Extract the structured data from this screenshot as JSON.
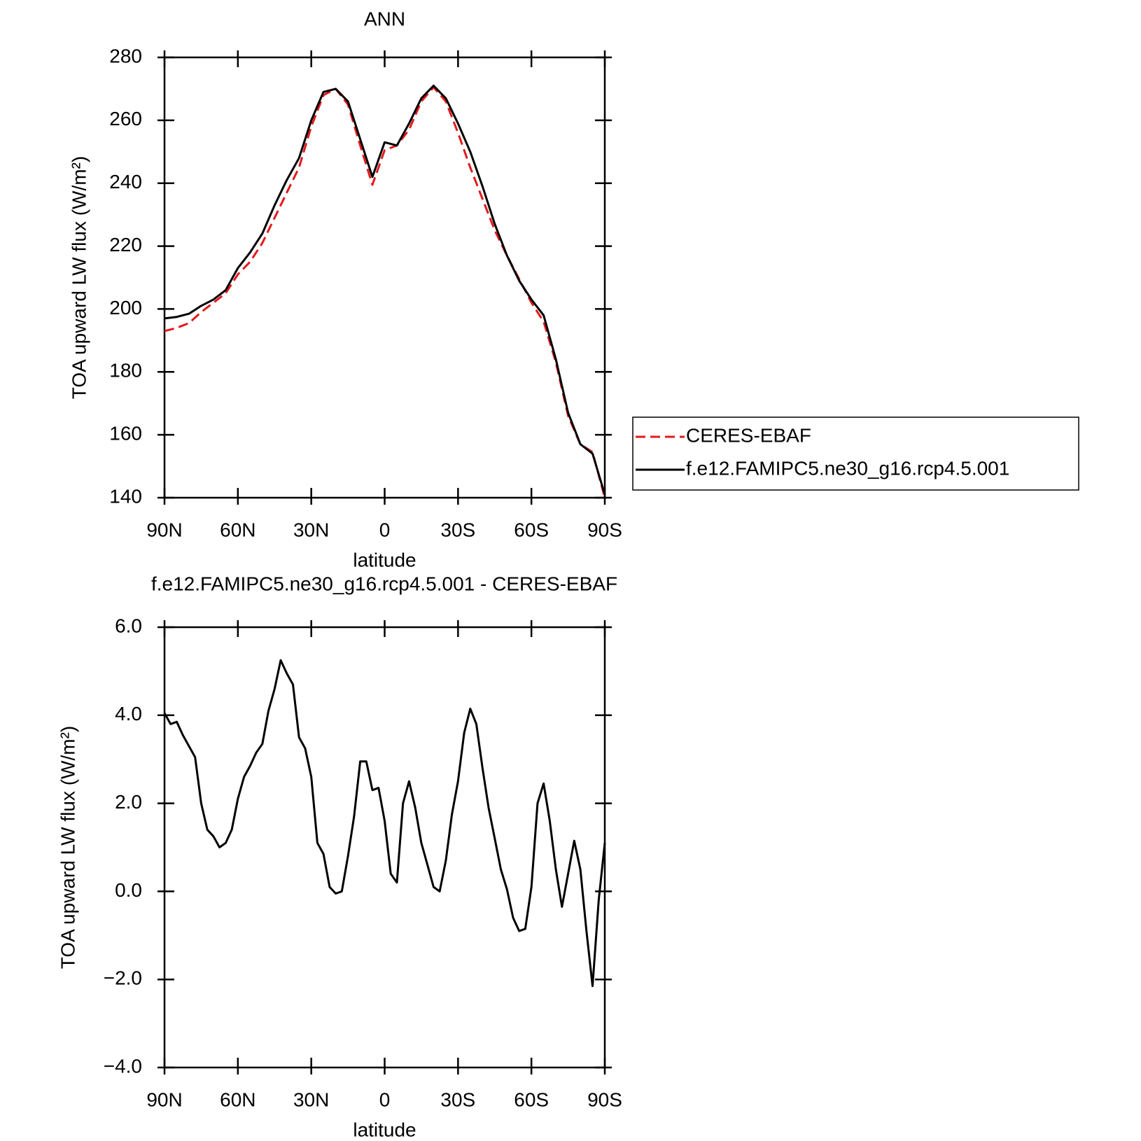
{
  "chart_data": [
    {
      "type": "line",
      "title": "ANN",
      "xlabel": "latitude",
      "ylabel": "TOA upward LW flux (W/m²)",
      "x": [
        90,
        85,
        80,
        75,
        70,
        65,
        60,
        55,
        50,
        45,
        40,
        35,
        30,
        25,
        20,
        15,
        10,
        5,
        0,
        -5,
        -10,
        -15,
        -20,
        -25,
        -30,
        -35,
        -40,
        -45,
        -50,
        -55,
        -60,
        -65,
        -70,
        -75,
        -80,
        -85,
        -90
      ],
      "series": [
        {
          "name": "CERES-EBAF",
          "color": "#e41a1c",
          "dash": true,
          "values": [
            193,
            194,
            195.5,
            199,
            202,
            205,
            211,
            215,
            221,
            229,
            237,
            245,
            258,
            268,
            270,
            265,
            252,
            239.5,
            250.5,
            252,
            257,
            266,
            270.5,
            266,
            256,
            245,
            235,
            225,
            217,
            209.5,
            202,
            196,
            183,
            166,
            157,
            154.5,
            140
          ]
        },
        {
          "name": "f.e12.FAMIPC5.ne30_g16.rcp4.5.001",
          "color": "#000000",
          "dash": false,
          "values": [
            197,
            197.5,
            198.5,
            201,
            203,
            206,
            213,
            218,
            224,
            233,
            241,
            248,
            260,
            269,
            270,
            266,
            254,
            242,
            253,
            252,
            259,
            267,
            271,
            267,
            259,
            250,
            239,
            227,
            217,
            209,
            203,
            198,
            184,
            167,
            157,
            154,
            141
          ]
        }
      ],
      "xlim": [
        90,
        -90
      ],
      "xticks": [
        {
          "value": 90,
          "label": "90N"
        },
        {
          "value": 60,
          "label": "60N"
        },
        {
          "value": 30,
          "label": "30N"
        },
        0,
        {
          "value": -30,
          "label": "30S"
        },
        {
          "value": -60,
          "label": "60S"
        },
        {
          "value": -90,
          "label": "90S"
        }
      ],
      "ylim": [
        140,
        280
      ],
      "yticks": [
        140,
        160,
        180,
        200,
        220,
        240,
        260,
        280
      ],
      "legend": "outside right"
    },
    {
      "type": "line",
      "title": "f.e12.FAMIPC5.ne30_g16.rcp4.5.001 - CERES-EBAF",
      "xlabel": "latitude",
      "ylabel": "TOA upward LW flux (W/m²)",
      "x": [
        90,
        87.5,
        85,
        82.5,
        80,
        77.5,
        75,
        72.5,
        70,
        67.5,
        65,
        62.5,
        60,
        57.5,
        55,
        52.5,
        50,
        47.5,
        45,
        42.5,
        40,
        37.5,
        35,
        32.5,
        30,
        27.5,
        25,
        22.5,
        20,
        17.5,
        15,
        12.5,
        10,
        7.5,
        5,
        2.5,
        0,
        -2.5,
        -5,
        -7.5,
        -10,
        -12.5,
        -15,
        -17.5,
        -20,
        -22.5,
        -25,
        -27.5,
        -30,
        -32.5,
        -35,
        -37.5,
        -40,
        -42.5,
        -45,
        -47.5,
        -50,
        -52.5,
        -55,
        -57.5,
        -60,
        -62.5,
        -65,
        -67.5,
        -70,
        -72.5,
        -75,
        -77.5,
        -80,
        -82.5,
        -85,
        -87.5,
        -90
      ],
      "series": [
        {
          "color": "#000000",
          "dash": false,
          "values": [
            4.05,
            3.8,
            3.85,
            3.55,
            3.3,
            3.05,
            2.0,
            1.4,
            1.25,
            1.0,
            1.1,
            1.4,
            2.1,
            2.6,
            2.85,
            3.15,
            3.35,
            4.1,
            4.6,
            5.25,
            4.95,
            4.7,
            3.5,
            3.25,
            2.6,
            1.1,
            0.85,
            0.1,
            -0.05,
            0.0,
            0.8,
            1.7,
            2.95,
            2.95,
            2.3,
            2.35,
            1.6,
            0.4,
            0.2,
            2.0,
            2.5,
            1.9,
            1.1,
            0.6,
            0.1,
            0.0,
            0.7,
            1.75,
            2.5,
            3.6,
            4.15,
            3.8,
            2.8,
            1.9,
            1.2,
            0.5,
            0.05,
            -0.6,
            -0.9,
            -0.85,
            0.1,
            2.0,
            2.45,
            1.6,
            0.5,
            -0.35,
            0.4,
            1.15,
            0.5,
            -0.9,
            -2.15,
            -0.2,
            1.1
          ]
        }
      ],
      "xlim": [
        90,
        -90
      ],
      "xticks": [
        {
          "value": 90,
          "label": "90N"
        },
        {
          "value": 60,
          "label": "60N"
        },
        {
          "value": 30,
          "label": "30N"
        },
        0,
        {
          "value": -30,
          "label": "30S"
        },
        {
          "value": -60,
          "label": "60S"
        },
        {
          "value": -90,
          "label": "90S"
        }
      ],
      "ylim": [
        -4,
        6
      ],
      "yticks": [
        {
          "value": -4,
          "label": "−4.0"
        },
        {
          "value": -2,
          "label": "−2.0"
        },
        {
          "value": 0,
          "label": "0.0"
        },
        {
          "value": 2,
          "label": "2.0"
        },
        {
          "value": 4,
          "label": "4.0"
        },
        {
          "value": 6,
          "label": "6.0"
        }
      ]
    }
  ]
}
